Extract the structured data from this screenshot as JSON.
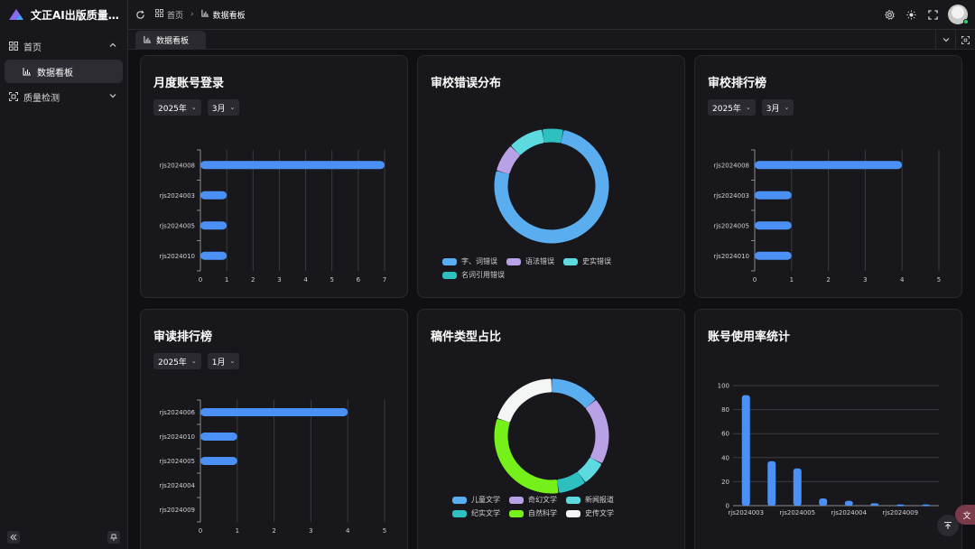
{
  "app": {
    "title": "文正AI出版质量监…"
  },
  "sidebar": {
    "items": [
      {
        "label": "首页"
      },
      {
        "label": "数据看板"
      },
      {
        "label": "质量检测"
      }
    ]
  },
  "header": {
    "breadcrumb": [
      {
        "label": "首页"
      },
      {
        "label": "数据看板"
      }
    ]
  },
  "tabs": [
    {
      "label": "数据看板"
    }
  ],
  "colors": {
    "bar": "#4a90f5",
    "accent": "#2fd46a"
  },
  "cards": {
    "monthly_login": {
      "title": "月度账号登录",
      "year": "2025年",
      "month": "3月"
    },
    "error_dist": {
      "title": "审校错误分布"
    },
    "review_rank": {
      "title": "审校排行榜",
      "year": "2025年",
      "month": "3月"
    },
    "read_rank": {
      "title": "审读排行榜",
      "year": "2025年",
      "month": "1月"
    },
    "doc_type": {
      "title": "稿件类型占比"
    },
    "usage": {
      "title": "账号使用率统计"
    }
  },
  "chart_data": [
    {
      "id": "monthly_login",
      "type": "bar",
      "orientation": "horizontal",
      "categories": [
        "rjs2024008",
        "rjs2024003",
        "rjs2024005",
        "rjs2024010"
      ],
      "values": [
        7,
        1,
        1,
        1
      ],
      "xticks": [
        "0",
        "1",
        "2",
        "3",
        "4",
        "5",
        "6",
        "7"
      ],
      "xlim": [
        0,
        7
      ],
      "grid": true
    },
    {
      "id": "error_dist",
      "type": "pie",
      "donut": true,
      "slices": [
        {
          "label": "字、词错误",
          "value": 76,
          "color": "#5aaef0"
        },
        {
          "label": "语法错误",
          "value": 8,
          "color": "#b9a1e6"
        },
        {
          "label": "史实错误",
          "value": 10,
          "color": "#5dd9e0"
        },
        {
          "label": "名词引用错误",
          "value": 6,
          "color": "#2ec0c0"
        }
      ]
    },
    {
      "id": "review_rank",
      "type": "bar",
      "orientation": "horizontal",
      "categories": [
        "rjs2024008",
        "rjs2024003",
        "rjs2024005",
        "rjs2024010"
      ],
      "values": [
        4,
        1,
        1,
        1
      ],
      "xticks": [
        "0",
        "1",
        "2",
        "3",
        "4",
        "5"
      ],
      "xlim": [
        0,
        5
      ],
      "grid": true
    },
    {
      "id": "read_rank",
      "type": "bar",
      "orientation": "horizontal",
      "categories": [
        "rjs2024006",
        "rjs2024010",
        "rjs2024005",
        "rjs2024004",
        "rjs2024009"
      ],
      "values": [
        4,
        1,
        1,
        0,
        0
      ],
      "xticks": [
        "0",
        "1",
        "2",
        "3",
        "4",
        "5"
      ],
      "xlim": [
        0,
        5
      ],
      "grid": true
    },
    {
      "id": "doc_type",
      "type": "pie",
      "donut": true,
      "slices": [
        {
          "label": "儿童文学",
          "value": 14,
          "color": "#5aaef0"
        },
        {
          "label": "奇幻文学",
          "value": 19,
          "color": "#b9a1e6"
        },
        {
          "label": "新闻报道",
          "value": 7,
          "color": "#5dd9e0"
        },
        {
          "label": "纪实文学",
          "value": 8,
          "color": "#2ec0c0"
        },
        {
          "label": "自然科学",
          "value": 32,
          "color": "#76f01a"
        },
        {
          "label": "史传文学",
          "value": 20,
          "color": "#f3f6f4"
        }
      ]
    },
    {
      "id": "usage",
      "type": "bar",
      "orientation": "vertical",
      "categories": [
        "rjs2024003",
        "c2",
        "rjs2024005",
        "c4",
        "rjs2024004",
        "c6",
        "rjs2024009",
        "c8"
      ],
      "tick_labels": [
        "rjs2024003",
        "",
        "rjs2024005",
        "",
        "rjs2024004",
        "",
        "rjs2024009",
        ""
      ],
      "values": [
        92,
        37,
        31,
        6,
        4,
        2,
        1,
        1
      ],
      "yticks": [
        "0",
        "20",
        "40",
        "60",
        "80",
        "100"
      ],
      "ylim": [
        0,
        100
      ],
      "grid": true
    }
  ]
}
